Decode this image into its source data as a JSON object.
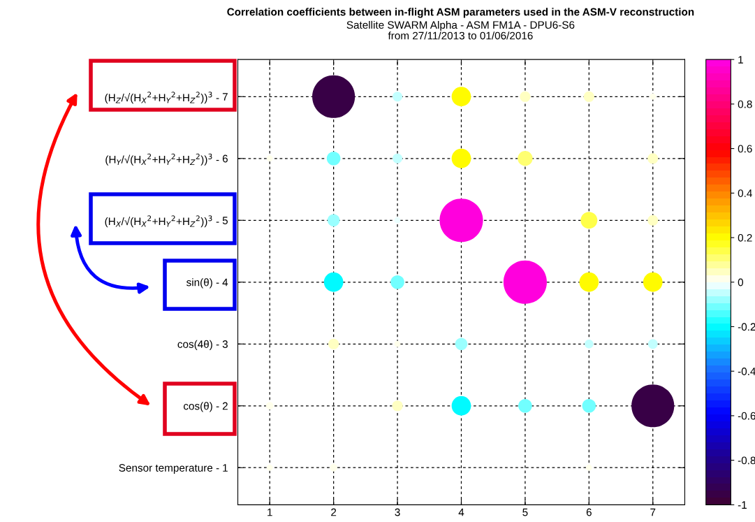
{
  "chart_data": {
    "type": "bubble",
    "title": "Correlation coefficients between in-flight ASM parameters used in the ASM-V reconstruction",
    "subtitle": "Satellite SWARM Alpha - ASM FM1A - DPU6-S6\nfrom 27/11/2013 to 01/06/2016",
    "x": [
      2,
      3,
      4,
      5,
      6,
      7,
      1,
      2,
      3,
      4,
      5,
      7,
      2,
      3,
      4,
      6,
      7,
      2,
      3,
      5,
      6,
      7,
      2,
      3,
      4,
      6,
      7,
      1,
      3,
      4,
      5,
      6,
      7,
      1,
      2,
      6
    ],
    "values": [
      7,
      7,
      7,
      7,
      7,
      7,
      6,
      6,
      6,
      6,
      6,
      6,
      5,
      5,
      5,
      5,
      5,
      4,
      4,
      4,
      4,
      4,
      3,
      3,
      3,
      3,
      3,
      2,
      2,
      2,
      2,
      2,
      2,
      1,
      1,
      1
    ],
    "cvalues": [
      -0.95,
      -0.05,
      0.2,
      0.06,
      0.06,
      0.02,
      0.02,
      -0.1,
      -0.05,
      0.2,
      0.12,
      0.06,
      -0.08,
      -0.02,
      0.98,
      0.15,
      0.06,
      -0.2,
      -0.1,
      0.98,
      0.2,
      0.2,
      0.06,
      0.02,
      -0.08,
      -0.04,
      -0.05,
      0.03,
      0.06,
      -0.2,
      -0.1,
      -0.1,
      -0.95,
      0.02,
      0.03,
      0.02
    ],
    "sizes": [
      0.97,
      0.05,
      0.2,
      0.06,
      0.06,
      0.02,
      0.02,
      0.1,
      0.05,
      0.2,
      0.12,
      0.06,
      0.08,
      0.02,
      1,
      0.15,
      0.06,
      0.2,
      0.1,
      1,
      0.2,
      0.2,
      0.06,
      0.02,
      0.08,
      0.04,
      0.05,
      0.03,
      0.06,
      0.2,
      0.1,
      0.1,
      0.97,
      0.02,
      0.03,
      0.02
    ],
    "xlim": [
      0.5,
      7.5
    ],
    "xticks": [
      1,
      2,
      3,
      4,
      5,
      6,
      7
    ],
    "ylim": [
      0.4,
      7.6
    ],
    "yticks": [
      1,
      2,
      3,
      4,
      5,
      6,
      7
    ],
    "annotations": [
      "Sensor temperature -",
      "cos(θ) -",
      "cos(4θ) -",
      "sin(θ) -",
      "(H$_{X}$/√(H$_{X}$$^{2}$+H$_{Y}$$^{2}$+H$_{Z}$$^{2}$))$^{3}$ -",
      "(H$_{Y}$/√(H$_{X}$$^{2}$+H$_{Y}$$^{2}$+H$_{Z}$$^{2}$))$^{3}$ -",
      "(H$_{Z}$/√(H$_{X}$$^{2}$+H$_{Y}$$^{2}$+H$_{Z}$$^{2}$))$^{3}$ -"
    ],
    "clim": [
      -1,
      1
    ],
    "cticks": [
      -1,
      -0.8,
      -0.6,
      -0.4,
      -0.2,
      0,
      0.2,
      0.4,
      0.6,
      0.8,
      1
    ],
    "grid": true
  }
}
